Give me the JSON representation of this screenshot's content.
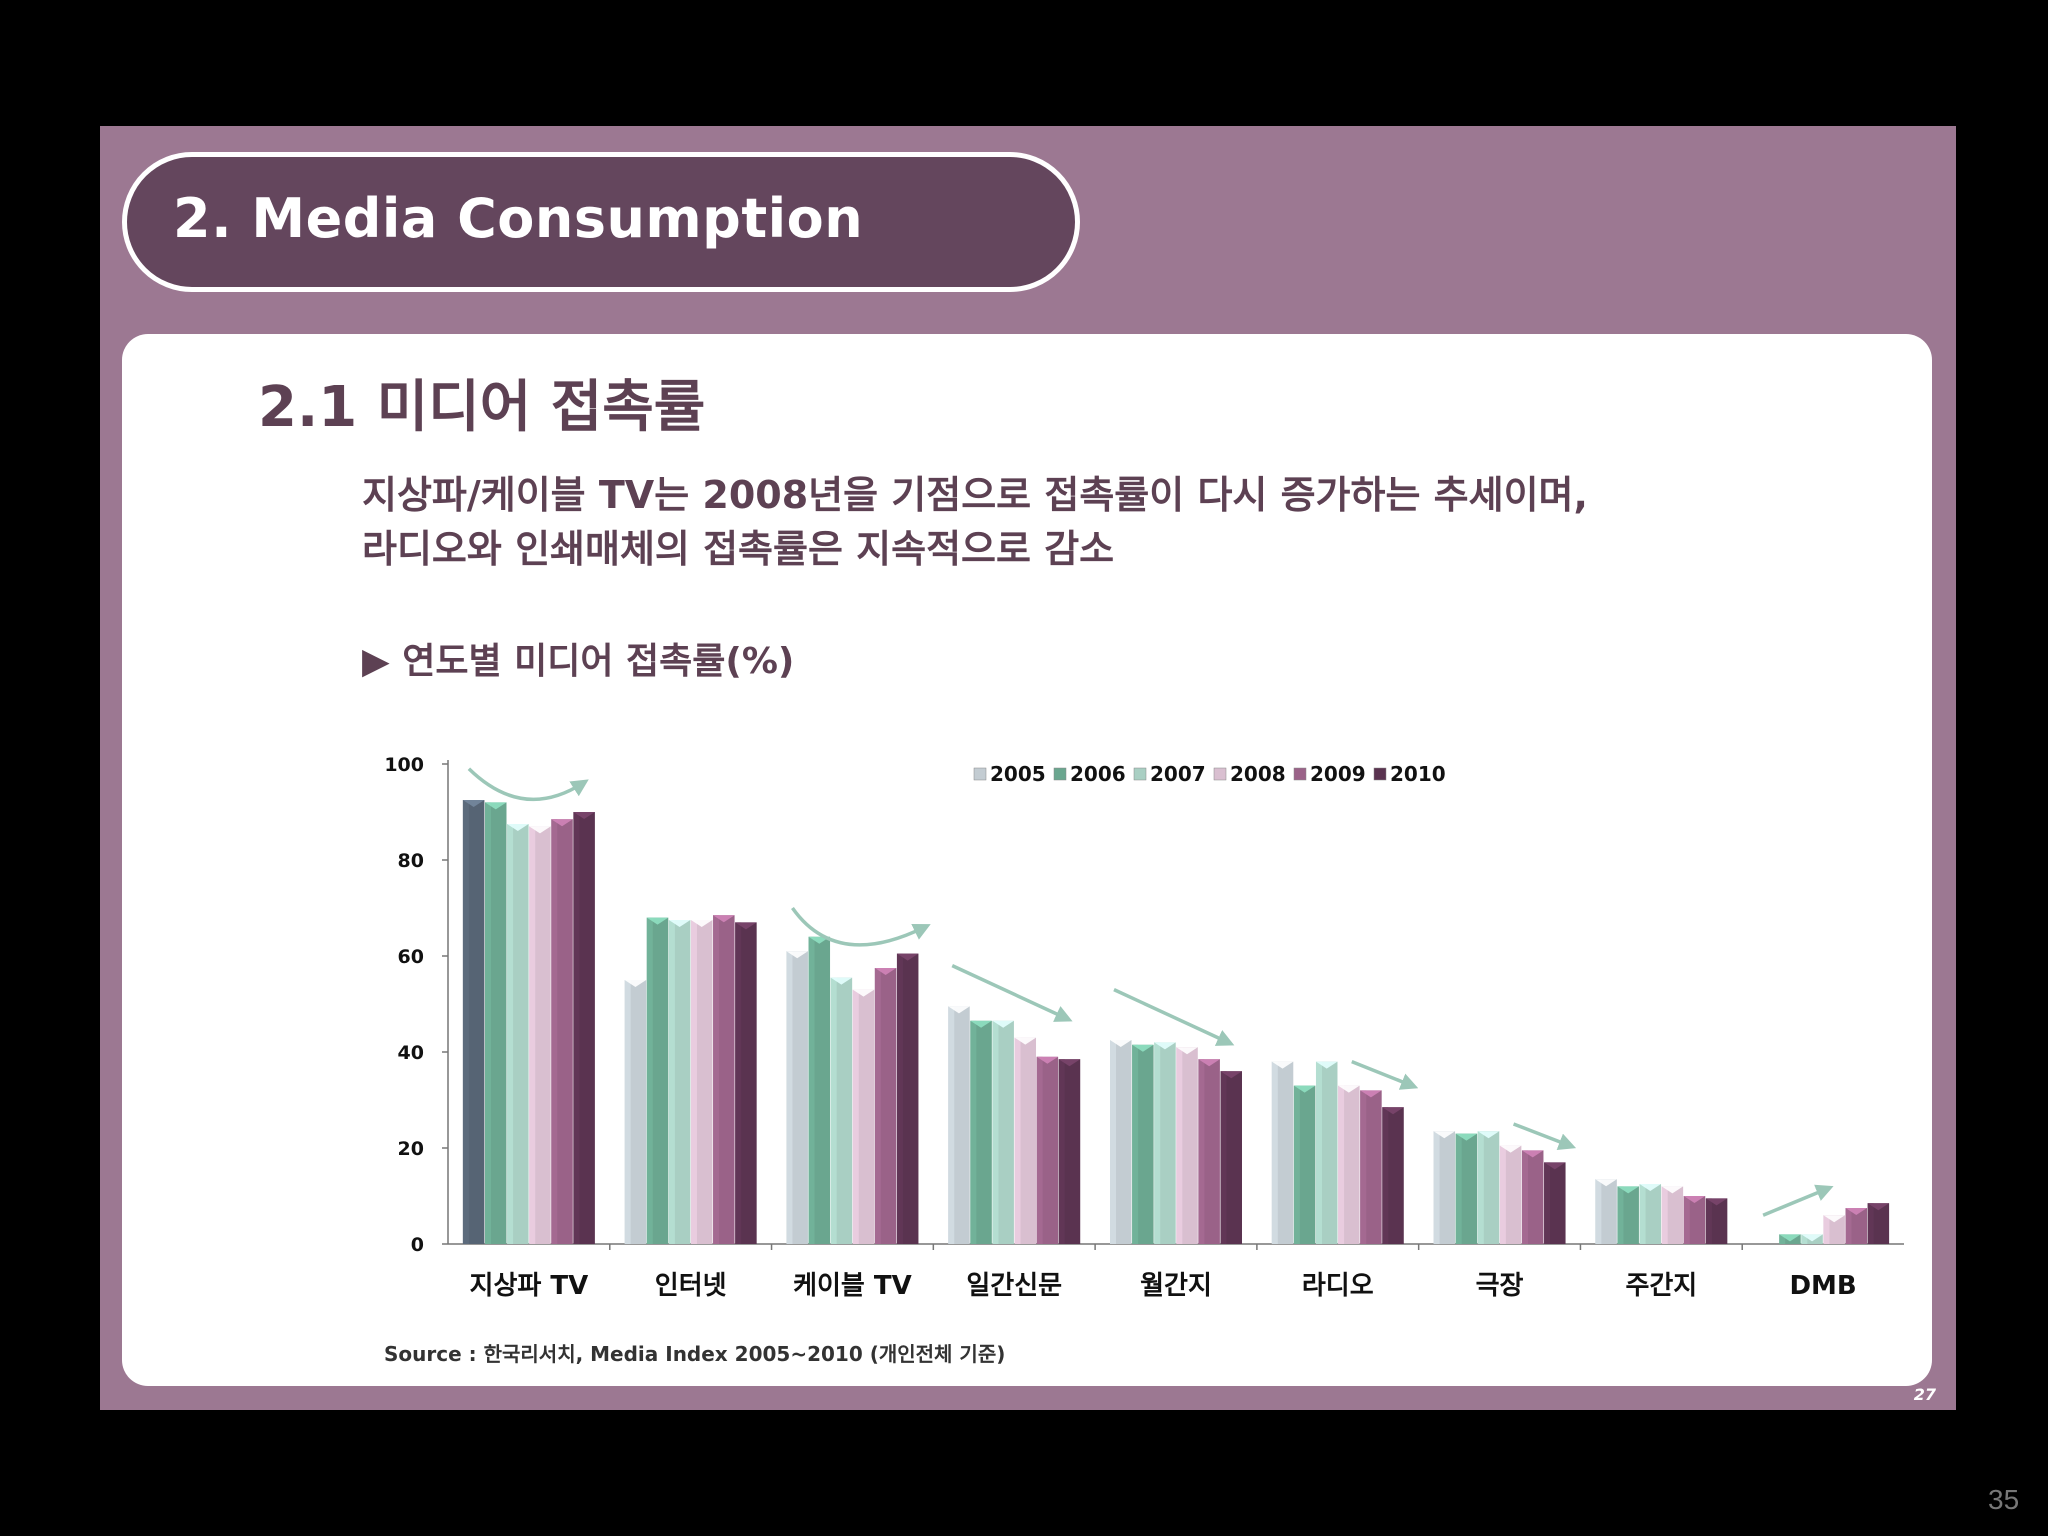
{
  "slide": {
    "title": "2.  Media Consumption",
    "section": "2.1  미디어 접촉률",
    "description_lines": [
      "지상파/케이블 TV는 2008년을 기점으로 접촉률이 다시 증가하는 추세이며,",
      "라디오와 인쇄매체의 접촉률은 지속적으로 감소"
    ],
    "chart_caption": "▶ 연도별 미디어 접촉률(%)",
    "source": "Source : 한국리서치,  Media Index 2005~2010 (개인전체 기준)",
    "slide_number": "27",
    "page_number": "35"
  },
  "chart_data": {
    "type": "bar",
    "categories": [
      "지상파 TV",
      "인터넷",
      "케이블 TV",
      "일간신문",
      "월간지",
      "라디오",
      "극장",
      "주간지",
      "DMB"
    ],
    "series": [
      {
        "name": "2005",
        "values": [
          92.5,
          55,
          61,
          49.5,
          42.5,
          38,
          23.5,
          13.5,
          null
        ]
      },
      {
        "name": "2006",
        "values": [
          92,
          68,
          64,
          46.5,
          41.5,
          33,
          23,
          12,
          2
        ]
      },
      {
        "name": "2007",
        "values": [
          87.5,
          67.5,
          55.5,
          46.5,
          42,
          38,
          23.5,
          12.5,
          2
        ]
      },
      {
        "name": "2008",
        "values": [
          87,
          67.5,
          53,
          43,
          41,
          33,
          20.5,
          12,
          6
        ]
      },
      {
        "name": "2009",
        "values": [
          88.5,
          68.5,
          57.5,
          39,
          38.5,
          32,
          19.5,
          10,
          7.5
        ]
      },
      {
        "name": "2010",
        "values": [
          90,
          67,
          60.5,
          38.5,
          36,
          28.5,
          17,
          9.5,
          8.5
        ]
      }
    ],
    "colors": {
      "2005": {
        "normal": "#c3ccd2",
        "first": "#566474"
      },
      "2006": {
        "normal": "#6aa68f"
      },
      "2007": {
        "normal": "#a9cfc3"
      },
      "2008": {
        "normal": "#d9bfd0"
      },
      "2009": {
        "normal": "#9a6288"
      },
      "2010": {
        "normal": "#5a3350"
      }
    },
    "yticks": [
      0,
      20,
      40,
      60,
      80,
      100
    ],
    "ylim": [
      0,
      100
    ],
    "legend_position": "top-center",
    "trend_arrow_color": "#9cc7b8"
  }
}
